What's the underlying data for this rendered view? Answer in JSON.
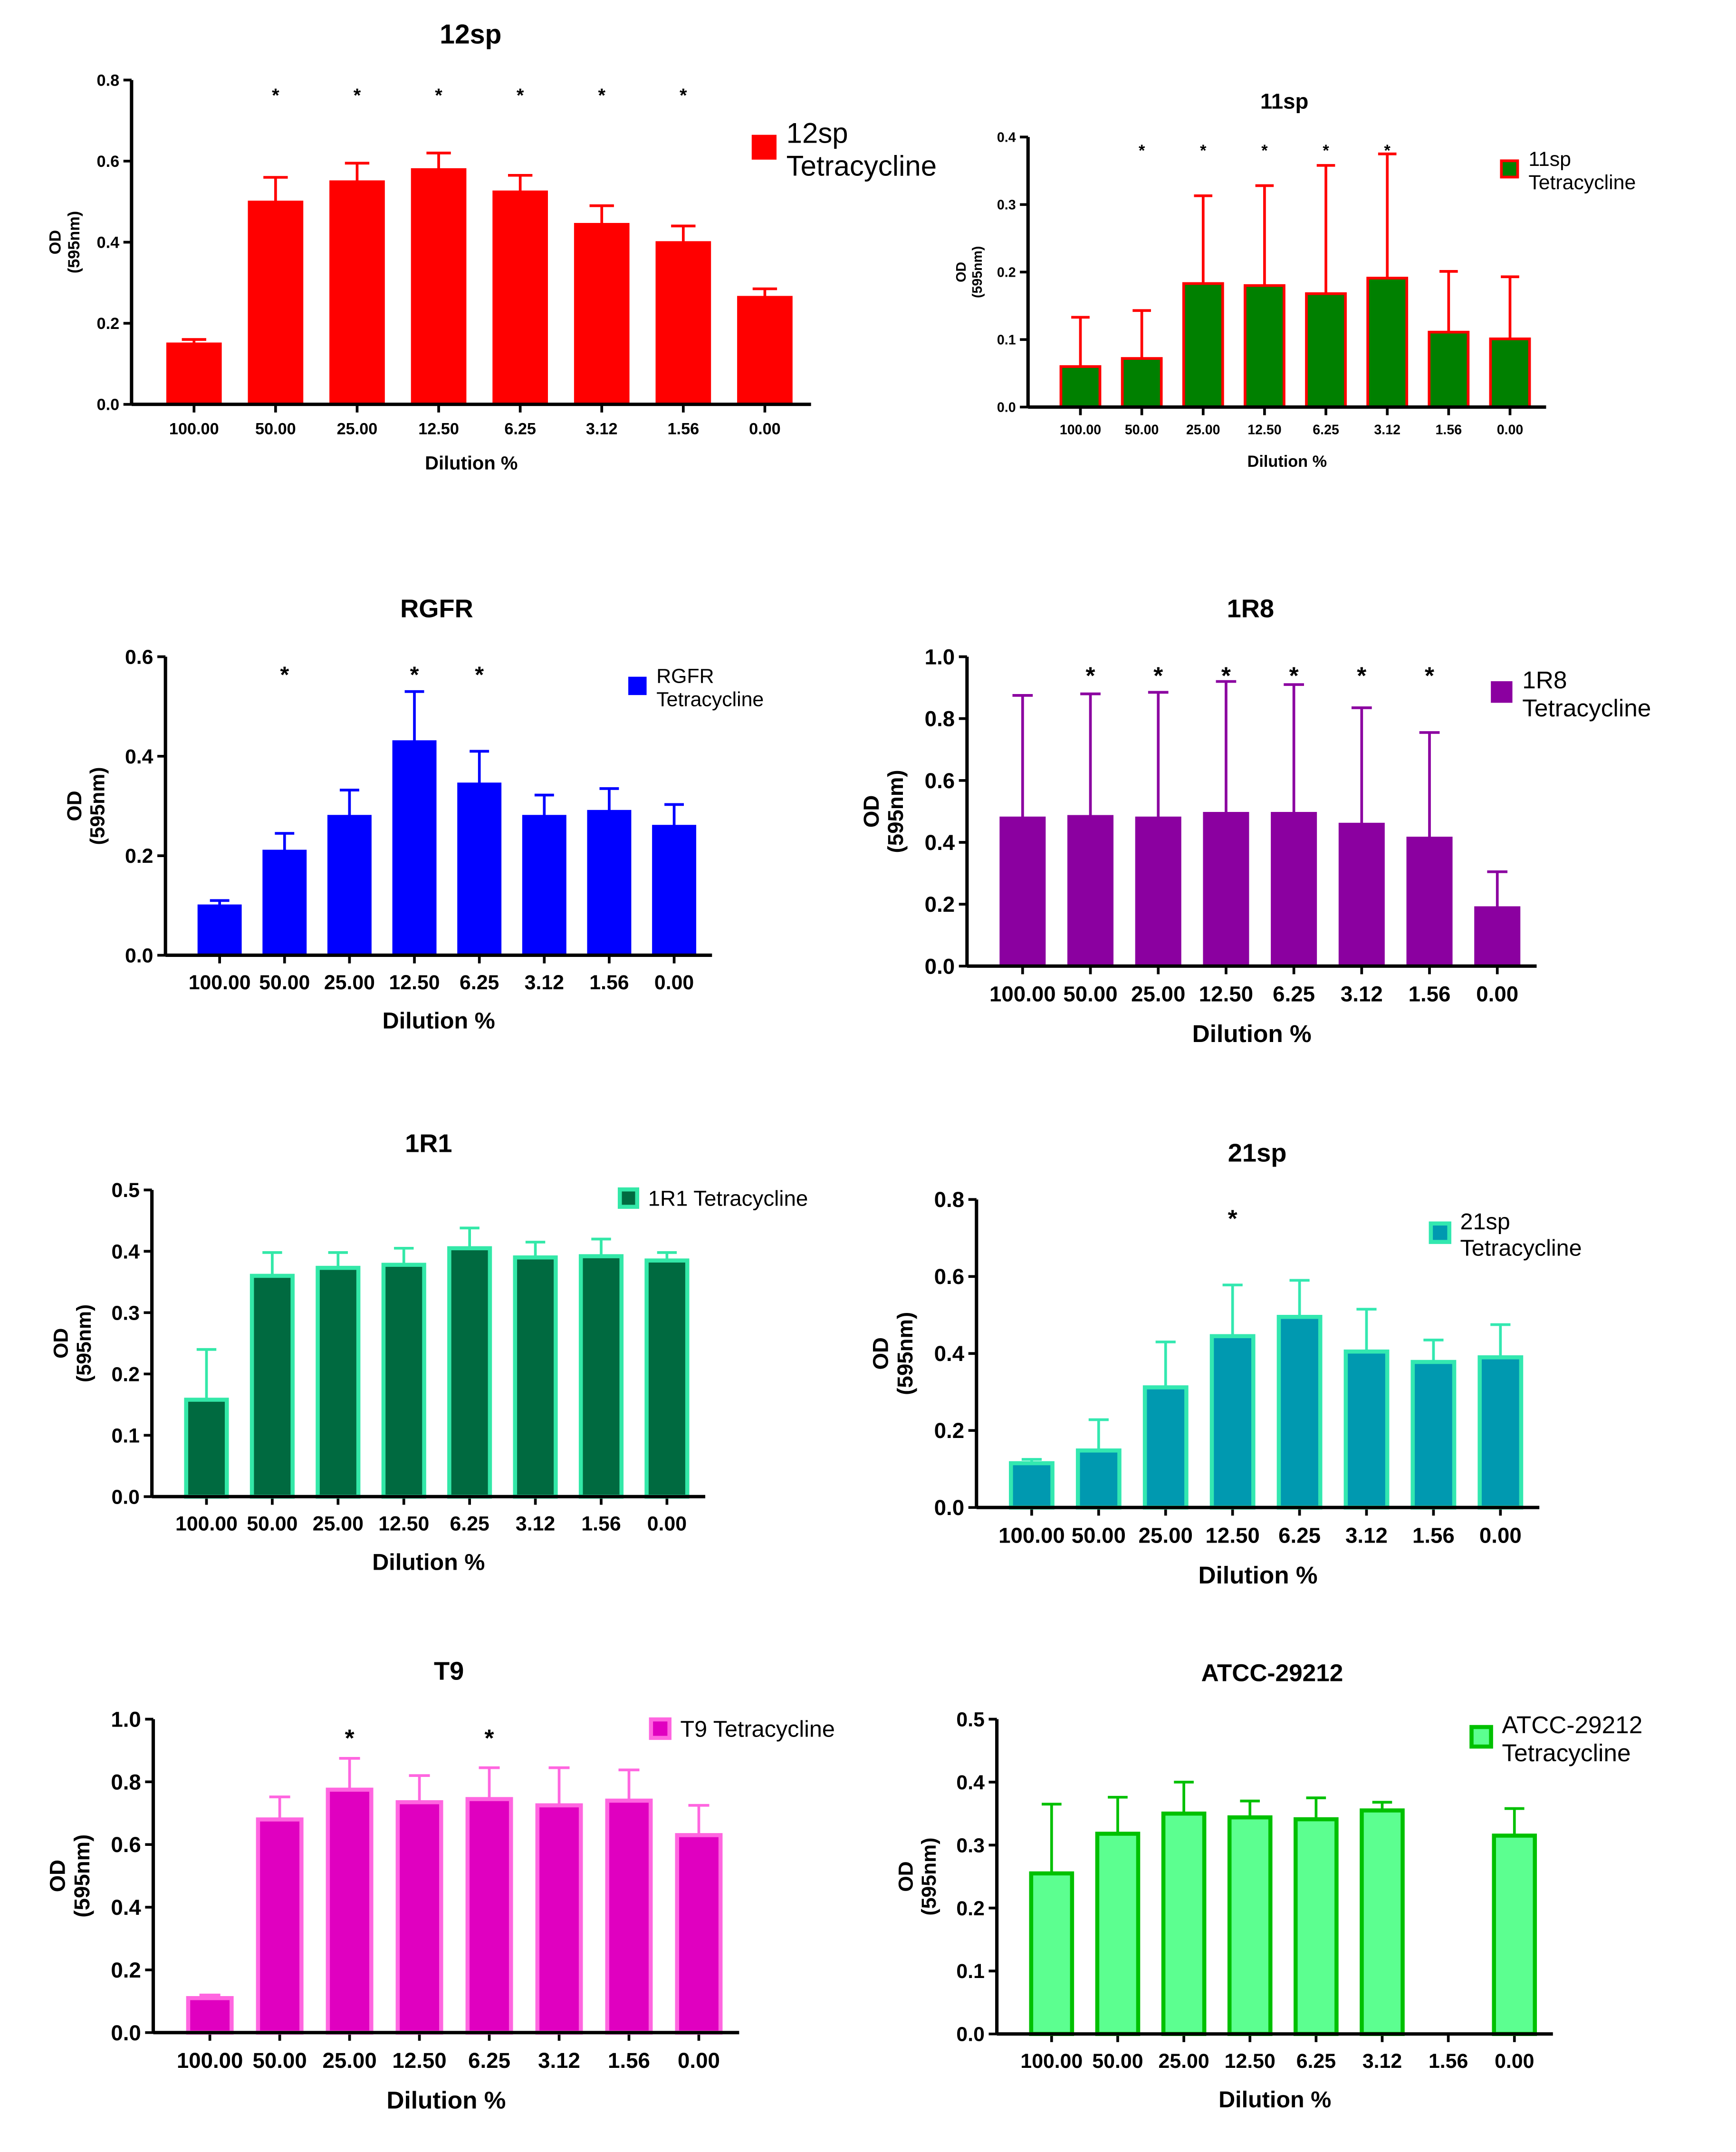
{
  "chart_data": [
    {
      "type": "bar",
      "title": "12sp",
      "xlabel": "Dilution %",
      "ylabel": "OD\n(595nm)",
      "ylim": [
        0,
        0.8
      ],
      "yticks": [
        0,
        0.2,
        0.4,
        0.6,
        0.8
      ],
      "categories": [
        "100.00",
        "50.00",
        "25.00",
        "12.50",
        "6.25",
        "3.12",
        "1.56",
        "0.00"
      ],
      "series": [
        {
          "name": "12sp Tetracycline",
          "values": [
            0.15,
            0.5,
            0.55,
            0.58,
            0.525,
            0.445,
            0.4,
            0.265
          ],
          "error_upper": [
            0.16,
            0.56,
            0.595,
            0.62,
            0.565,
            0.49,
            0.44,
            0.285
          ]
        }
      ],
      "significance": [
        "",
        "*",
        "*",
        "*",
        "*",
        "*",
        "*",
        ""
      ],
      "legend": "top-right",
      "fill": "#ff0000",
      "stroke": "#ff0000"
    },
    {
      "type": "bar",
      "title": "11sp",
      "xlabel": "Dilution %",
      "ylabel": "OD\n(595nm)",
      "ylim": [
        0,
        0.4
      ],
      "yticks": [
        0,
        0.1,
        0.2,
        0.3,
        0.4
      ],
      "categories": [
        "100.00",
        "50.00",
        "25.00",
        "12.50",
        "6.25",
        "3.12",
        "1.56",
        "0.00"
      ],
      "series": [
        {
          "name": "11sp Tetracycline",
          "values": [
            0.06,
            0.072,
            0.183,
            0.18,
            0.168,
            0.191,
            0.111,
            0.101
          ],
          "error_upper": [
            0.133,
            0.143,
            0.313,
            0.328,
            0.358,
            0.375,
            0.201,
            0.193
          ]
        }
      ],
      "significance": [
        "",
        "*",
        "*",
        "*",
        "*",
        "*",
        "",
        ""
      ],
      "legend": "top-right",
      "fill": "#008000",
      "stroke": "#ff0000"
    },
    {
      "type": "bar",
      "title": "RGFR",
      "xlabel": "Dilution %",
      "ylabel": "OD\n(595nm)",
      "ylim": [
        0,
        0.6
      ],
      "yticks": [
        0,
        0.2,
        0.4,
        0.6
      ],
      "categories": [
        "100.00",
        "50.00",
        "25.00",
        "12.50",
        "6.25",
        "3.12",
        "1.56",
        "0.00"
      ],
      "series": [
        {
          "name": "RGFR Tetracycline",
          "values": [
            0.1,
            0.21,
            0.28,
            0.43,
            0.345,
            0.28,
            0.29,
            0.26
          ],
          "error_upper": [
            0.11,
            0.245,
            0.332,
            0.53,
            0.41,
            0.322,
            0.335,
            0.303
          ]
        }
      ],
      "significance": [
        "",
        "*",
        "",
        "*",
        "*",
        "",
        "",
        ""
      ],
      "legend": "top-right",
      "fill": "#0000ff",
      "stroke": "#0000ff"
    },
    {
      "type": "bar",
      "title": "1R8",
      "xlabel": "Dilution %",
      "ylabel": "OD\n(595nm)",
      "ylim": [
        0,
        1.0
      ],
      "yticks": [
        0,
        0.2,
        0.4,
        0.6,
        0.8,
        1.0
      ],
      "categories": [
        "100.00",
        "50.00",
        "25.00",
        "12.50",
        "6.25",
        "3.12",
        "1.56",
        "0.00"
      ],
      "series": [
        {
          "name": "1R8 Tetracycline",
          "values": [
            0.48,
            0.485,
            0.48,
            0.495,
            0.495,
            0.46,
            0.415,
            0.19
          ],
          "error_upper": [
            0.875,
            0.88,
            0.885,
            0.92,
            0.91,
            0.835,
            0.755,
            0.305
          ]
        }
      ],
      "significance": [
        "",
        "*",
        "*",
        "*",
        "*",
        "*",
        "*",
        ""
      ],
      "legend": "top-right",
      "fill": "#8b00a0",
      "stroke": "#8b00a0"
    },
    {
      "type": "bar",
      "title": "1R1",
      "xlabel": "Dilution %",
      "ylabel": "OD\n(595nm)",
      "ylim": [
        0,
        0.5
      ],
      "yticks": [
        0,
        0.1,
        0.2,
        0.3,
        0.4,
        0.5
      ],
      "categories": [
        "100.00",
        "50.00",
        "25.00",
        "12.50",
        "6.25",
        "3.12",
        "1.56",
        "0.00"
      ],
      "series": [
        {
          "name": "1R1 Tetracycline",
          "values": [
            0.158,
            0.36,
            0.373,
            0.378,
            0.405,
            0.39,
            0.392,
            0.385
          ],
          "error_upper": [
            0.24,
            0.398,
            0.398,
            0.405,
            0.438,
            0.415,
            0.42,
            0.398
          ]
        }
      ],
      "significance": [
        "",
        "",
        "",
        "",
        "",
        "",
        "",
        ""
      ],
      "legend": "top-right",
      "fill": "#006a40",
      "stroke": "#33e8a8"
    },
    {
      "type": "bar",
      "title": "21sp",
      "xlabel": "Dilution %",
      "ylabel": "OD\n(595nm)",
      "ylim": [
        0,
        0.8
      ],
      "yticks": [
        0,
        0.2,
        0.4,
        0.6,
        0.8
      ],
      "categories": [
        "100.00",
        "50.00",
        "25.00",
        "12.50",
        "6.25",
        "3.12",
        "1.56",
        "0.00"
      ],
      "series": [
        {
          "name": "21sp Tetracycline",
          "values": [
            0.115,
            0.148,
            0.312,
            0.445,
            0.495,
            0.405,
            0.378,
            0.39
          ],
          "error_upper": [
            0.125,
            0.228,
            0.43,
            0.578,
            0.59,
            0.515,
            0.435,
            0.475
          ]
        }
      ],
      "significance": [
        "",
        "",
        "",
        "*",
        "",
        "",
        "",
        ""
      ],
      "legend": "top-right",
      "fill": "#0099b0",
      "stroke": "#33e8b0"
    },
    {
      "type": "bar",
      "title": "T9",
      "xlabel": "Dilution %",
      "ylabel": "OD\n(595nm)",
      "ylim": [
        0,
        1.0
      ],
      "yticks": [
        0,
        0.2,
        0.4,
        0.6,
        0.8,
        1.0
      ],
      "categories": [
        "100.00",
        "50.00",
        "25.00",
        "12.50",
        "6.25",
        "3.12",
        "1.56",
        "0.00"
      ],
      "series": [
        {
          "name": "T9 Tetracycline",
          "values": [
            0.11,
            0.68,
            0.775,
            0.735,
            0.745,
            0.725,
            0.74,
            0.63
          ],
          "error_upper": [
            0.12,
            0.752,
            0.875,
            0.82,
            0.845,
            0.845,
            0.838,
            0.725
          ]
        }
      ],
      "significance": [
        "",
        "",
        "*",
        "",
        "*",
        "",
        "",
        ""
      ],
      "legend": "top-right",
      "fill": "#e000c0",
      "stroke": "#ff66e0"
    },
    {
      "type": "bar",
      "title": "ATCC-29212",
      "xlabel": "Dilution %",
      "ylabel": "OD\n(595nm)",
      "ylim": [
        0,
        0.5
      ],
      "yticks": [
        0,
        0.1,
        0.2,
        0.3,
        0.4,
        0.5
      ],
      "categories": [
        "100.00",
        "50.00",
        "25.00",
        "12.50",
        "6.25",
        "3.12",
        "1.56",
        "0.00"
      ],
      "series": [
        {
          "name": "ATCC-29212 Tetracycline",
          "values": [
            0.255,
            0.318,
            0.35,
            0.344,
            0.341,
            0.355,
            null,
            0.315
          ],
          "error_upper": [
            0.365,
            0.376,
            0.4,
            0.37,
            0.375,
            0.368,
            null,
            0.358
          ]
        }
      ],
      "significance": [
        "",
        "",
        "",
        "",
        "",
        "",
        "",
        ""
      ],
      "legend": "top-right",
      "fill": "#5cff90",
      "stroke": "#00c000"
    }
  ]
}
